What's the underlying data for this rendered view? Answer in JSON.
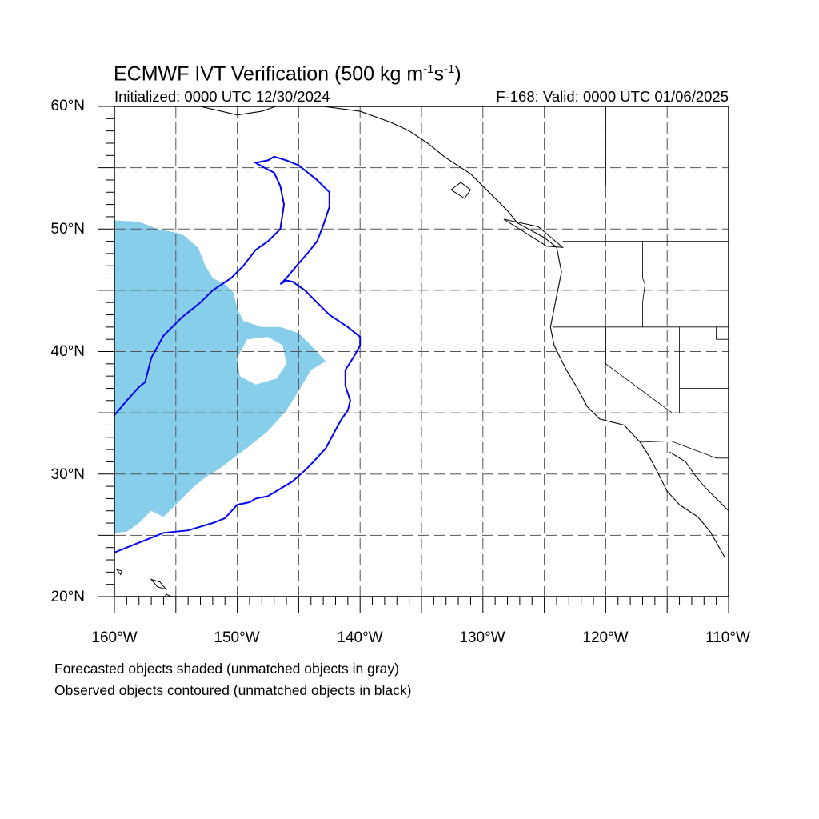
{
  "title": {
    "main": "ECMWF IVT Verification (500 kg m",
    "exp1": "-1",
    "mid": "s",
    "exp2": "-1",
    "close": ")"
  },
  "initialized": "Initialized: 0000 UTC 12/30/2024",
  "valid": "F-168: Valid: 0000 UTC 01/06/2025",
  "lat_labels": [
    "60°N",
    "50°N",
    "40°N",
    "30°N",
    "20°N"
  ],
  "lon_labels": [
    "160°W",
    "150°W",
    "140°W",
    "130°W",
    "120°W",
    "110°W"
  ],
  "legend_lines": [
    "Forecasted objects shaded (unmatched objects in gray)",
    "Observed objects contoured (unmatched objects in black)"
  ],
  "colors": {
    "forecast_fill": "#87ceeb",
    "observed_contour": "#0000ee",
    "coastline": "#000000",
    "grid": "#555555"
  },
  "extent": {
    "lon": [
      -160,
      -110
    ],
    "lat": [
      20,
      60
    ]
  },
  "forecast_object": [
    [
      -160,
      50.7
    ],
    [
      -158,
      50.6
    ],
    [
      -156.5,
      50
    ],
    [
      -154.5,
      49.6
    ],
    [
      -153.2,
      48.5
    ],
    [
      -152.6,
      47
    ],
    [
      -152,
      46
    ],
    [
      -151,
      45.5
    ],
    [
      -150.3,
      44.8
    ],
    [
      -150,
      43.5
    ],
    [
      -149.5,
      42.5
    ],
    [
      -148,
      42
    ],
    [
      -146.5,
      42
    ],
    [
      -145,
      41.5
    ],
    [
      -144,
      40.5
    ],
    [
      -142.8,
      39.2
    ],
    [
      -144,
      38.5
    ],
    [
      -145,
      36.8
    ],
    [
      -146,
      35.2
    ],
    [
      -147.5,
      33.5
    ],
    [
      -149,
      32.3
    ],
    [
      -150.3,
      31.3
    ],
    [
      -151.5,
      30.4
    ],
    [
      -152.5,
      29.8
    ],
    [
      -153.5,
      29
    ],
    [
      -154.5,
      28
    ],
    [
      -155.5,
      27
    ],
    [
      -156,
      26.5
    ],
    [
      -157,
      27
    ],
    [
      -158,
      26
    ],
    [
      -159,
      25.3
    ],
    [
      -160,
      25.2
    ]
  ],
  "forecast_hole": [
    [
      -149.2,
      41
    ],
    [
      -147.5,
      41.2
    ],
    [
      -146.3,
      40.5
    ],
    [
      -146,
      39
    ],
    [
      -146.8,
      37.8
    ],
    [
      -148.5,
      37.3
    ],
    [
      -149.8,
      38
    ],
    [
      -150,
      39.5
    ]
  ],
  "observed_object": [
    [
      -160,
      23.6
    ],
    [
      -158,
      24.4
    ],
    [
      -156,
      25.2
    ],
    [
      -154,
      25.4
    ],
    [
      -152,
      26
    ],
    [
      -151,
      26.4
    ],
    [
      -150,
      27.5
    ],
    [
      -149,
      27.7
    ],
    [
      -148.5,
      28
    ],
    [
      -147.5,
      28.2
    ],
    [
      -146.5,
      28.8
    ],
    [
      -145.5,
      29.4
    ],
    [
      -144.5,
      30.3
    ],
    [
      -143.8,
      31
    ],
    [
      -142.8,
      32.1
    ],
    [
      -142,
      33.6
    ],
    [
      -141.5,
      34.5
    ],
    [
      -141,
      35.2
    ],
    [
      -140.8,
      36
    ],
    [
      -141.2,
      37.2
    ],
    [
      -141.2,
      38.5
    ],
    [
      -140.5,
      39.6
    ],
    [
      -140,
      40.5
    ],
    [
      -140,
      41.2
    ],
    [
      -141,
      42
    ],
    [
      -142.5,
      43
    ],
    [
      -143.5,
      44
    ],
    [
      -144.5,
      45
    ],
    [
      -145.5,
      45.7
    ],
    [
      -146,
      45.8
    ],
    [
      -146.5,
      45.5
    ],
    [
      -146,
      46
    ],
    [
      -145,
      47.2
    ],
    [
      -144.3,
      48
    ],
    [
      -143.5,
      49
    ],
    [
      -143,
      50.3
    ],
    [
      -142.5,
      51.8
    ],
    [
      -142.5,
      53
    ],
    [
      -143.5,
      54
    ],
    [
      -145,
      55.2
    ],
    [
      -146,
      55.6
    ],
    [
      -147,
      55.9
    ],
    [
      -147.5,
      55.6
    ],
    [
      -148.5,
      55.4
    ],
    [
      -147.8,
      55
    ],
    [
      -147,
      54.6
    ],
    [
      -146.5,
      53.5
    ],
    [
      -146.2,
      52
    ],
    [
      -146.5,
      50
    ],
    [
      -147.5,
      49
    ],
    [
      -148.5,
      48.3
    ],
    [
      -149.5,
      47
    ],
    [
      -150.5,
      46
    ],
    [
      -152,
      45
    ],
    [
      -153,
      44
    ],
    [
      -154.5,
      42.8
    ],
    [
      -156,
      41.3
    ],
    [
      -157,
      39.5
    ],
    [
      -157.5,
      37.5
    ],
    [
      -158,
      37.1
    ],
    [
      -159,
      36
    ],
    [
      -160,
      34.8
    ]
  ],
  "coastline_na": [
    [
      -153,
      60
    ],
    [
      -150,
      59.3
    ],
    [
      -148,
      59.6
    ],
    [
      -146,
      60.3
    ],
    [
      -143,
      60
    ],
    [
      -140,
      59.6
    ],
    [
      -137.5,
      58.7
    ],
    [
      -136,
      58
    ],
    [
      -134.5,
      57
    ],
    [
      -133,
      55.8
    ],
    [
      -131,
      54.5
    ],
    [
      -129.5,
      53
    ],
    [
      -128,
      51.5
    ],
    [
      -127.2,
      50.5
    ],
    [
      -125,
      49.3
    ],
    [
      -124,
      48.5
    ],
    [
      -123.6,
      46.5
    ],
    [
      -124.1,
      44
    ],
    [
      -124.5,
      42
    ],
    [
      -124.2,
      40.5
    ],
    [
      -123.2,
      38.5
    ],
    [
      -122.3,
      37
    ],
    [
      -121.5,
      35.5
    ],
    [
      -120.5,
      34.5
    ],
    [
      -118.5,
      34
    ],
    [
      -117.2,
      32.6
    ],
    [
      -116.5,
      31.5
    ],
    [
      -115.7,
      30
    ],
    [
      -115,
      28.6
    ],
    [
      -114,
      27.5
    ],
    [
      -112.5,
      26.5
    ],
    [
      -111.5,
      25.3
    ],
    [
      -110.3,
      23.2
    ]
  ],
  "coastline_gulf": [
    [
      -114.8,
      31.8
    ],
    [
      -113.5,
      31
    ],
    [
      -112.8,
      30
    ],
    [
      -112,
      29
    ],
    [
      -111,
      28
    ],
    [
      -110,
      27
    ],
    [
      -109.5,
      26
    ]
  ],
  "borders": [
    [
      [
        -123.5,
        49
      ],
      [
        -110,
        49
      ]
    ],
    [
      [
        -124.3,
        42
      ],
      [
        -110,
        42
      ]
    ],
    [
      [
        -120,
        42
      ],
      [
        -120,
        39
      ],
      [
        -114.6,
        35
      ]
    ],
    [
      [
        -117,
        49
      ],
      [
        -117,
        46
      ],
      [
        -116.8,
        45.5
      ],
      [
        -117,
        44
      ],
      [
        -117,
        42
      ]
    ],
    [
      [
        -114,
        42
      ],
      [
        -114,
        35
      ]
    ],
    [
      [
        -117.1,
        32.6
      ],
      [
        -114.7,
        32.7
      ],
      [
        -111,
        31.3
      ],
      [
        -110,
        31.3
      ]
    ],
    [
      [
        -111,
        45
      ],
      [
        -110,
        45
      ]
    ],
    [
      [
        -111,
        42
      ],
      [
        -111,
        41
      ],
      [
        -110,
        41
      ]
    ],
    [
      [
        -114,
        37
      ],
      [
        -110,
        37
      ]
    ],
    [
      [
        -120,
        60
      ],
      [
        -120,
        53.5
      ]
    ]
  ],
  "islands": [
    [
      [
        -157,
        21.4
      ],
      [
        -156.3,
        21.2
      ],
      [
        -155.8,
        20.6
      ],
      [
        -156.5,
        20.8
      ]
    ],
    [
      [
        -159.8,
        22.2
      ],
      [
        -159.4,
        22.1
      ],
      [
        -159.5,
        21.8
      ]
    ],
    [
      [
        -155.8,
        20.2
      ],
      [
        -154.9,
        19.8
      ],
      [
        -155.5,
        19.2
      ],
      [
        -156,
        19.5
      ]
    ],
    [
      [
        -131.8,
        53.8
      ],
      [
        -131,
        53.2
      ],
      [
        -131.5,
        52.5
      ],
      [
        -132.6,
        53.2
      ]
    ],
    [
      [
        -128.3,
        50.8
      ],
      [
        -125.5,
        50.2
      ],
      [
        -123.5,
        48.5
      ],
      [
        -124.8,
        48.6
      ]
    ]
  ]
}
